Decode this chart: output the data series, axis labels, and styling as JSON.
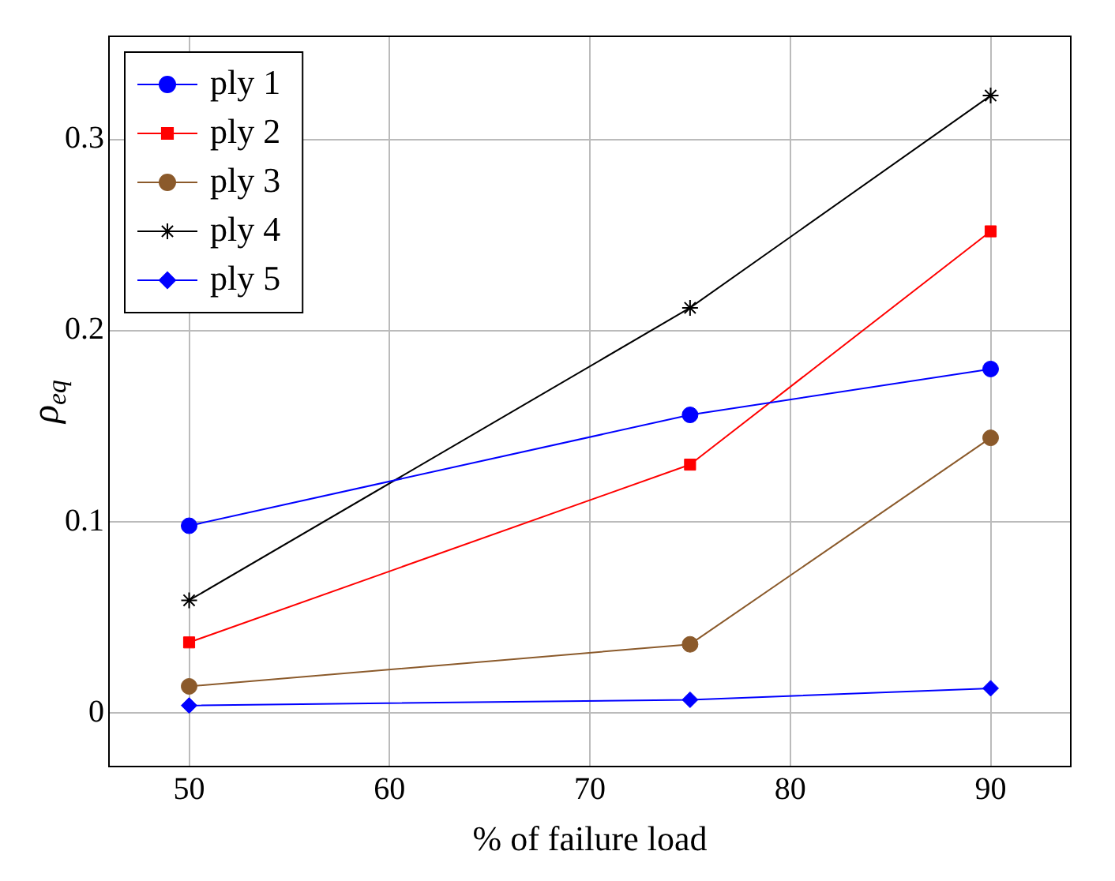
{
  "chart_data": {
    "type": "line",
    "xlabel": "% of failure load",
    "ylabel": "ρ$_{eq}$",
    "x": [
      50,
      75,
      90
    ],
    "series": [
      {
        "name": "ply 1",
        "color": "#0000ff",
        "marker": "circle",
        "values": [
          0.098,
          0.156,
          0.18
        ]
      },
      {
        "name": "ply 2",
        "color": "#ff0000",
        "marker": "square",
        "values": [
          0.037,
          0.13,
          0.252
        ]
      },
      {
        "name": "ply 3",
        "color": "#8b5a2b",
        "marker": "circle",
        "values": [
          0.014,
          0.036,
          0.144
        ]
      },
      {
        "name": "ply 4",
        "color": "#000000",
        "marker": "cross",
        "values": [
          0.059,
          0.212,
          0.323
        ]
      },
      {
        "name": "ply 5",
        "color": "#0000ff",
        "marker": "diamond",
        "values": [
          0.004,
          0.007,
          0.013
        ]
      }
    ],
    "xlim": [
      46,
      94
    ],
    "xticks": [
      50,
      60,
      70,
      80,
      90
    ],
    "ylim": [
      -0.028,
      0.354
    ],
    "yticks": [
      0,
      0.1,
      0.2,
      0.3
    ],
    "grid": true,
    "legend": "top left",
    "line_style": "solid"
  }
}
